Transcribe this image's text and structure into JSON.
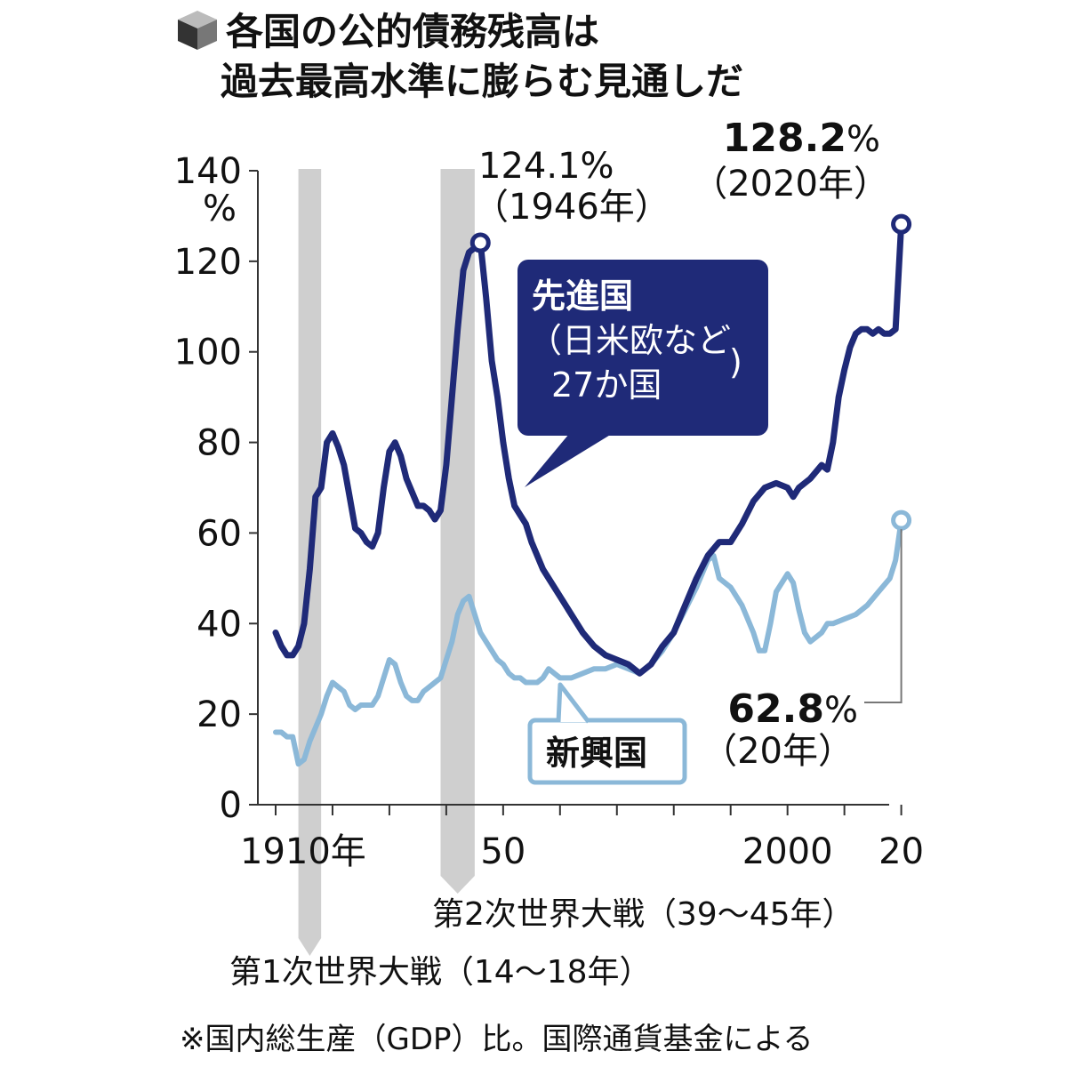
{
  "title": {
    "line1": "各国の公的債務残高は",
    "line2": "過去最高水準に膨らむ見通しだ",
    "icon": "cube-icon"
  },
  "footnote": "※国内総生産（GDP）比。国際通貨基金による",
  "colors": {
    "advanced": "#1f2a78",
    "emerging": "#8bb8d8",
    "war_band": "#cfcfcf",
    "axis": "#333333"
  },
  "chart_data": {
    "type": "line",
    "unit": "%",
    "ylim": [
      0,
      140
    ],
    "yticks": [
      0,
      20,
      40,
      60,
      80,
      100,
      120,
      140
    ],
    "xlim": [
      1910,
      2021
    ],
    "x_tick_labels": [
      {
        "x": 1910,
        "label": "1910年"
      },
      {
        "x": 1950,
        "label": "50"
      },
      {
        "x": 2000,
        "label": "2000"
      },
      {
        "x": 2020,
        "label": "20"
      }
    ],
    "x_minor_ticks": [
      1910,
      1920,
      1930,
      1940,
      1950,
      1960,
      1970,
      1980,
      1990,
      2000,
      2010,
      2020
    ],
    "war_bands": [
      {
        "start": 1914,
        "end": 1918,
        "label": "第1次世界大戦（14〜18年）"
      },
      {
        "start": 1939,
        "end": 1945,
        "label": "第2次世界大戦（39〜45年）"
      }
    ],
    "series": [
      {
        "name": "先進国",
        "name_sub1": "（日米欧など",
        "name_sub2": "27か国",
        "key": "advanced",
        "points": [
          [
            1910,
            38
          ],
          [
            1911,
            35
          ],
          [
            1912,
            33
          ],
          [
            1913,
            33
          ],
          [
            1914,
            35
          ],
          [
            1915,
            40
          ],
          [
            1916,
            52
          ],
          [
            1917,
            68
          ],
          [
            1918,
            70
          ],
          [
            1919,
            80
          ],
          [
            1920,
            82
          ],
          [
            1921,
            79
          ],
          [
            1922,
            75
          ],
          [
            1923,
            68
          ],
          [
            1924,
            61
          ],
          [
            1925,
            60
          ],
          [
            1926,
            58
          ],
          [
            1927,
            57
          ],
          [
            1928,
            60
          ],
          [
            1929,
            70
          ],
          [
            1930,
            78
          ],
          [
            1931,
            80
          ],
          [
            1932,
            77
          ],
          [
            1933,
            72
          ],
          [
            1934,
            69
          ],
          [
            1935,
            66
          ],
          [
            1936,
            66
          ],
          [
            1937,
            65
          ],
          [
            1938,
            63
          ],
          [
            1939,
            65
          ],
          [
            1940,
            75
          ],
          [
            1941,
            90
          ],
          [
            1942,
            105
          ],
          [
            1943,
            118
          ],
          [
            1944,
            122
          ],
          [
            1945,
            123
          ],
          [
            1946,
            124.1
          ],
          [
            1947,
            112
          ],
          [
            1948,
            98
          ],
          [
            1949,
            90
          ],
          [
            1950,
            80
          ],
          [
            1951,
            72
          ],
          [
            1952,
            66
          ],
          [
            1953,
            64
          ],
          [
            1954,
            62
          ],
          [
            1955,
            58
          ],
          [
            1956,
            55
          ],
          [
            1957,
            52
          ],
          [
            1958,
            50
          ],
          [
            1959,
            48
          ],
          [
            1960,
            46
          ],
          [
            1962,
            42
          ],
          [
            1964,
            38
          ],
          [
            1966,
            35
          ],
          [
            1968,
            33
          ],
          [
            1970,
            32
          ],
          [
            1972,
            31
          ],
          [
            1974,
            29
          ],
          [
            1976,
            31
          ],
          [
            1978,
            35
          ],
          [
            1980,
            38
          ],
          [
            1982,
            44
          ],
          [
            1984,
            50
          ],
          [
            1986,
            55
          ],
          [
            1988,
            58
          ],
          [
            1990,
            58
          ],
          [
            1992,
            62
          ],
          [
            1994,
            67
          ],
          [
            1996,
            70
          ],
          [
            1998,
            71
          ],
          [
            2000,
            70
          ],
          [
            2001,
            68
          ],
          [
            2002,
            70
          ],
          [
            2004,
            72
          ],
          [
            2006,
            75
          ],
          [
            2007,
            74
          ],
          [
            2008,
            80
          ],
          [
            2009,
            90
          ],
          [
            2010,
            96
          ],
          [
            2011,
            101
          ],
          [
            2012,
            104
          ],
          [
            2013,
            105
          ],
          [
            2014,
            105
          ],
          [
            2015,
            104
          ],
          [
            2016,
            105
          ],
          [
            2017,
            104
          ],
          [
            2018,
            104
          ],
          [
            2019,
            105
          ],
          [
            2020,
            128.2
          ]
        ],
        "peak_label": {
          "x": 1946,
          "value": "124.1%",
          "year": "（1946年）"
        },
        "end_label": {
          "x": 2020,
          "value_num": "128.2",
          "value_unit": "%",
          "year": "（2020年）"
        }
      },
      {
        "name": "新興国",
        "key": "emerging",
        "points": [
          [
            1910,
            16
          ],
          [
            1911,
            16
          ],
          [
            1912,
            15
          ],
          [
            1913,
            15
          ],
          [
            1914,
            9
          ],
          [
            1915,
            10
          ],
          [
            1916,
            14
          ],
          [
            1917,
            17
          ],
          [
            1918,
            20
          ],
          [
            1919,
            24
          ],
          [
            1920,
            27
          ],
          [
            1921,
            26
          ],
          [
            1922,
            25
          ],
          [
            1923,
            22
          ],
          [
            1924,
            21
          ],
          [
            1925,
            22
          ],
          [
            1926,
            22
          ],
          [
            1927,
            22
          ],
          [
            1928,
            24
          ],
          [
            1929,
            28
          ],
          [
            1930,
            32
          ],
          [
            1931,
            31
          ],
          [
            1932,
            27
          ],
          [
            1933,
            24
          ],
          [
            1934,
            23
          ],
          [
            1935,
            23
          ],
          [
            1936,
            25
          ],
          [
            1937,
            26
          ],
          [
            1938,
            27
          ],
          [
            1939,
            28
          ],
          [
            1940,
            32
          ],
          [
            1941,
            36
          ],
          [
            1942,
            42
          ],
          [
            1943,
            45
          ],
          [
            1944,
            46
          ],
          [
            1945,
            42
          ],
          [
            1946,
            38
          ],
          [
            1947,
            36
          ],
          [
            1948,
            34
          ],
          [
            1949,
            32
          ],
          [
            1950,
            31
          ],
          [
            1951,
            29
          ],
          [
            1952,
            28
          ],
          [
            1953,
            28
          ],
          [
            1954,
            27
          ],
          [
            1955,
            27
          ],
          [
            1956,
            27
          ],
          [
            1957,
            28
          ],
          [
            1958,
            30
          ],
          [
            1959,
            29
          ],
          [
            1960,
            28
          ],
          [
            1962,
            28
          ],
          [
            1964,
            29
          ],
          [
            1966,
            30
          ],
          [
            1968,
            30
          ],
          [
            1970,
            31
          ],
          [
            1972,
            30
          ],
          [
            1974,
            29
          ],
          [
            1976,
            31
          ],
          [
            1978,
            34
          ],
          [
            1980,
            38
          ],
          [
            1982,
            43
          ],
          [
            1984,
            48
          ],
          [
            1986,
            54
          ],
          [
            1987,
            55
          ],
          [
            1988,
            50
          ],
          [
            1990,
            48
          ],
          [
            1992,
            44
          ],
          [
            1994,
            38
          ],
          [
            1995,
            34
          ],
          [
            1996,
            34
          ],
          [
            1997,
            40
          ],
          [
            1998,
            47
          ],
          [
            1999,
            49
          ],
          [
            2000,
            51
          ],
          [
            2001,
            49
          ],
          [
            2002,
            43
          ],
          [
            2003,
            38
          ],
          [
            2004,
            36
          ],
          [
            2005,
            37
          ],
          [
            2006,
            38
          ],
          [
            2007,
            40
          ],
          [
            2008,
            40
          ],
          [
            2010,
            41
          ],
          [
            2012,
            42
          ],
          [
            2014,
            44
          ],
          [
            2016,
            47
          ],
          [
            2018,
            50
          ],
          [
            2019,
            54
          ],
          [
            2020,
            62.8
          ]
        ],
        "end_label": {
          "x": 2020,
          "value_num": "62.8",
          "value_unit": "%",
          "year": "（20年）"
        }
      }
    ]
  }
}
